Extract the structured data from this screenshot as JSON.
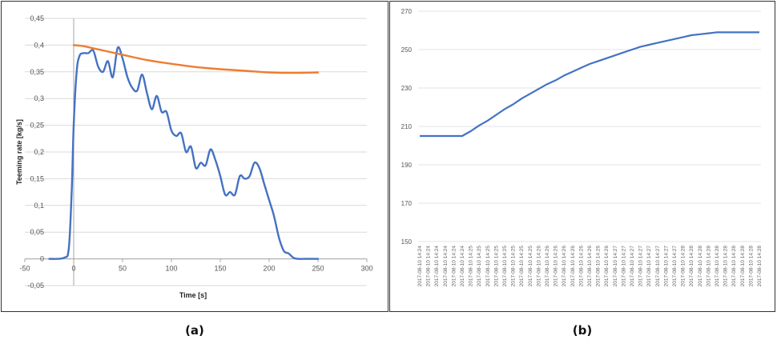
{
  "chart_data": [
    {
      "type": "line",
      "caption": "(a)",
      "xlabel": "Time [s]",
      "ylabel": "Teeming rate [kg/s]",
      "xlim": [
        -50,
        300
      ],
      "ylim": [
        -0.05,
        0.45
      ],
      "xticks": [
        "-50",
        "0",
        "50",
        "100",
        "150",
        "200",
        "250",
        "300"
      ],
      "yticks": [
        "-0,05",
        "0",
        "0,05",
        "0,1",
        "0,15",
        "0,2",
        "0,25",
        "0,3",
        "0,35",
        "0,4",
        "0,45"
      ],
      "grid": true,
      "series": [
        {
          "color": "#4472c4",
          "x": [
            -25,
            -10,
            -5,
            -2,
            0,
            3,
            6,
            10,
            15,
            20,
            25,
            30,
            35,
            40,
            45,
            50,
            55,
            60,
            65,
            70,
            75,
            80,
            85,
            90,
            95,
            100,
            105,
            110,
            115,
            120,
            125,
            130,
            135,
            140,
            145,
            150,
            155,
            160,
            165,
            170,
            175,
            180,
            185,
            190,
            195,
            200,
            205,
            210,
            215,
            220,
            225,
            230,
            235,
            240,
            250
          ],
          "y": [
            0,
            0.002,
            0.02,
            0.13,
            0.25,
            0.35,
            0.38,
            0.385,
            0.385,
            0.39,
            0.36,
            0.35,
            0.37,
            0.34,
            0.395,
            0.375,
            0.34,
            0.32,
            0.315,
            0.345,
            0.31,
            0.28,
            0.305,
            0.275,
            0.275,
            0.24,
            0.23,
            0.235,
            0.2,
            0.21,
            0.17,
            0.18,
            0.175,
            0.205,
            0.185,
            0.155,
            0.12,
            0.125,
            0.12,
            0.155,
            0.15,
            0.155,
            0.18,
            0.17,
            0.14,
            0.11,
            0.08,
            0.04,
            0.015,
            0.01,
            0.002,
            0,
            0,
            0,
            0
          ]
        },
        {
          "color": "#ed7d31",
          "x": [
            0,
            10,
            25,
            50,
            75,
            100,
            125,
            150,
            175,
            200,
            225,
            250
          ],
          "y": [
            0.4,
            0.398,
            0.392,
            0.382,
            0.372,
            0.365,
            0.359,
            0.355,
            0.352,
            0.349,
            0.348,
            0.349
          ]
        }
      ]
    },
    {
      "type": "line",
      "caption": "(b)",
      "ylim": [
        150,
        270
      ],
      "yticks": [
        "150",
        "170",
        "190",
        "210",
        "230",
        "250",
        "270"
      ],
      "grid": true,
      "categories": [
        "2017-08-10 14:24",
        "2017-08-10 14:24",
        "2017-08-10 14:24",
        "2017-08-10 14:24",
        "2017-08-10 14:24",
        "2017-08-10 14:24",
        "2017-08-10 14:25",
        "2017-08-10 14:25",
        "2017-08-10 14:25",
        "2017-08-10 14:25",
        "2017-08-10 14:25",
        "2017-08-10 14:25",
        "2017-08-10 14:25",
        "2017-08-10 14:25",
        "2017-08-10 14:26",
        "2017-08-10 14:26",
        "2017-08-10 14:26",
        "2017-08-10 14:26",
        "2017-08-10 14:26",
        "2017-08-10 14:26",
        "2017-08-10 14:26",
        "2017-08-10 14:26",
        "2017-08-10 14:26",
        "2017-08-10 14:27",
        "2017-08-10 14:27",
        "2017-08-10 14:27",
        "2017-08-10 14:27",
        "2017-08-10 14:27",
        "2017-08-10 14:27",
        "2017-08-10 14:27",
        "2017-08-10 14:27",
        "2017-08-10 14:28",
        "2017-08-10 14:28",
        "2017-08-10 14:28",
        "2017-08-10 14:28",
        "2017-08-10 14:28",
        "2017-08-10 14:28",
        "2017-08-10 14:28",
        "2017-08-10 14:28",
        "2017-08-10 14:28",
        "2017-08-10 14:28"
      ],
      "series": [
        {
          "color": "#4472c4",
          "values": [
            205,
            205,
            205,
            205,
            205,
            205,
            207.5,
            210.5,
            213,
            216,
            219,
            221.5,
            224.5,
            227,
            229.5,
            232,
            234,
            236.5,
            238.5,
            240.5,
            242.5,
            244,
            245.5,
            247,
            248.5,
            250,
            251.5,
            252.5,
            253.5,
            254.5,
            255.5,
            256.5,
            257.5,
            258,
            258.5,
            259,
            259,
            259,
            259,
            259,
            259
          ]
        }
      ]
    }
  ]
}
